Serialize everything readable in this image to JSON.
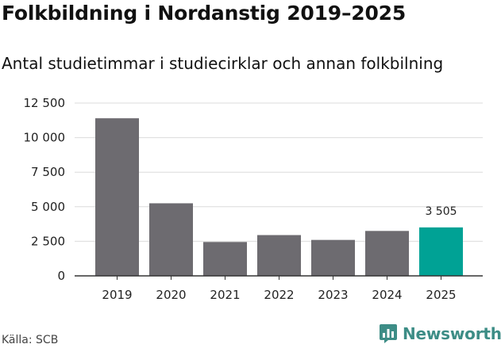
{
  "chart_data": {
    "type": "bar",
    "title": "Folkbildning i Nordanstig 2019–2025",
    "subtitle": "Antal studietimmar i studiecirklar och annan folkbilning",
    "categories": [
      "2019",
      "2020",
      "2021",
      "2022",
      "2023",
      "2024",
      "2025"
    ],
    "values": [
      11400,
      5250,
      2450,
      2950,
      2600,
      3250,
      3505
    ],
    "ylim": [
      0,
      12500
    ],
    "yticks": [
      0,
      2500,
      5000,
      7500,
      10000,
      12500
    ],
    "ytick_labels": [
      "0",
      "2 500",
      "5 000",
      "7 500",
      "10 000",
      "12 500"
    ],
    "xlabel": "",
    "ylabel": "",
    "grid": true,
    "data_labels": [
      {
        "index": 6,
        "text": "3 505"
      }
    ],
    "colors": {
      "bar": "#6d6b70",
      "highlight": "#00a295",
      "grid": "#dcdcdc",
      "axis": "#333333"
    }
  },
  "footer": {
    "source": "Källa: SCB",
    "brand_name": "Newsworthy",
    "brand_icon": "bar-chart-logo-icon",
    "brand_color": "#3d8d86"
  }
}
